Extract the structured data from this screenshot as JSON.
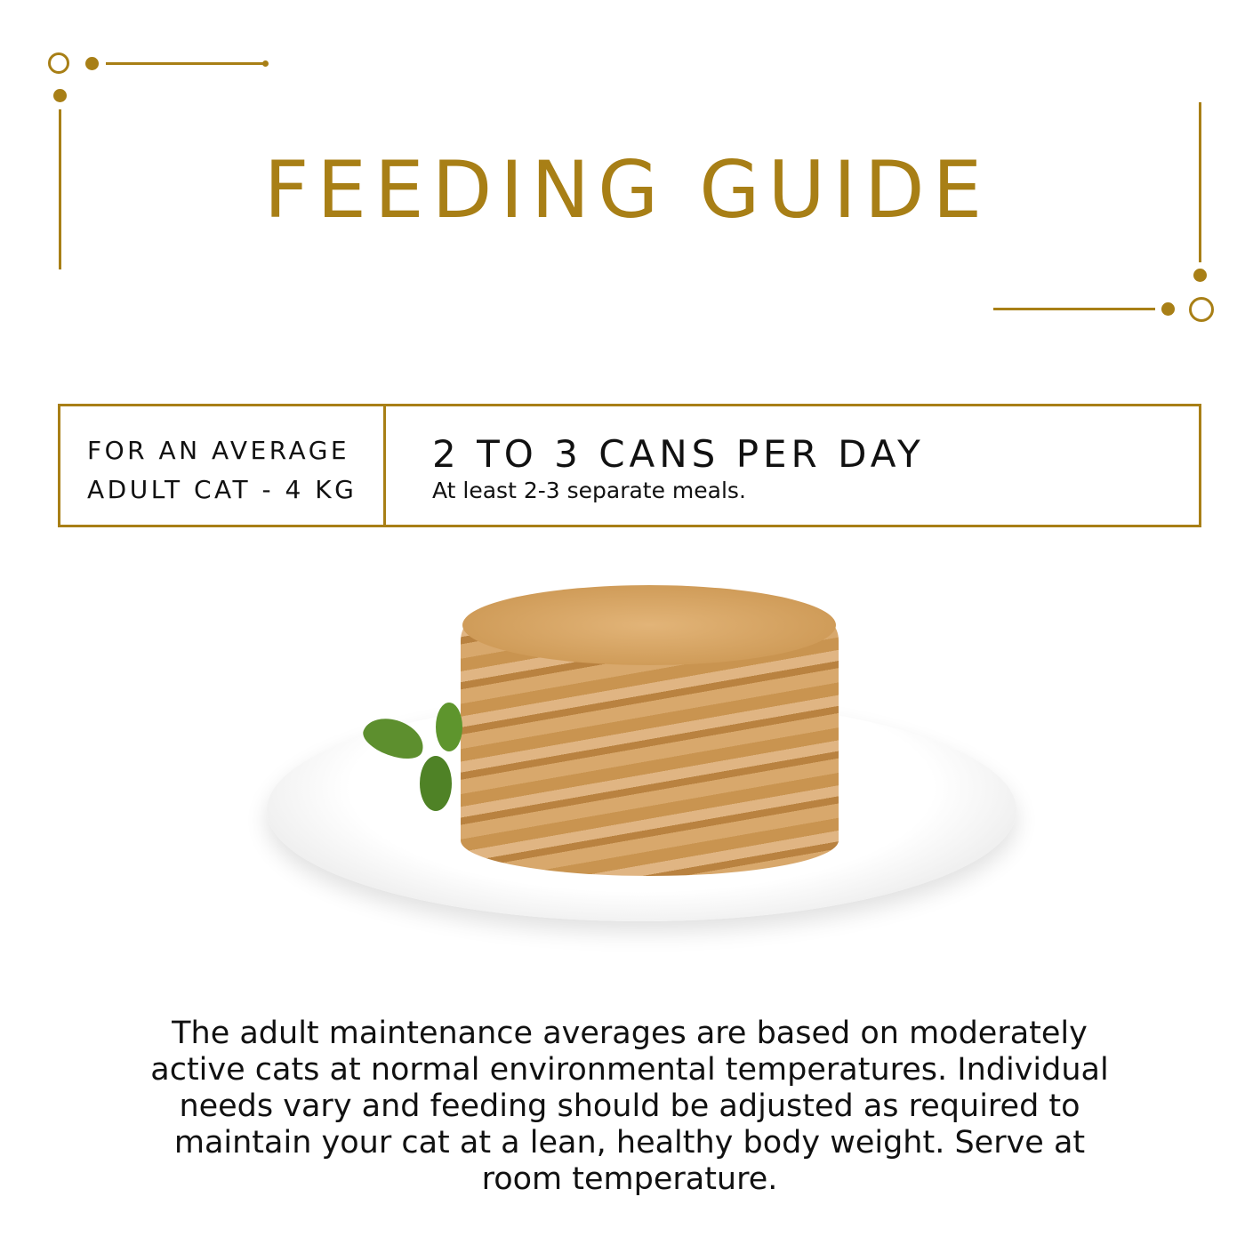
{
  "title": "FEEDING GUIDE",
  "accent_color": "#a87f16",
  "guide": {
    "audience_line1": "FOR AN AVERAGE",
    "audience_line2": "ADULT CAT - 4 KG",
    "amount": "2 TO 3 CANS PER DAY",
    "meals": "At least 2-3 separate meals."
  },
  "image": {
    "subject": "wet cat food on white plate with herb leaf"
  },
  "description": "The adult maintenance averages are based on moderately active cats at normal environmental temperatures. Individual needs vary and feeding should be adjusted as required to maintain your cat at a lean, healthy body weight. Serve at room temperature."
}
